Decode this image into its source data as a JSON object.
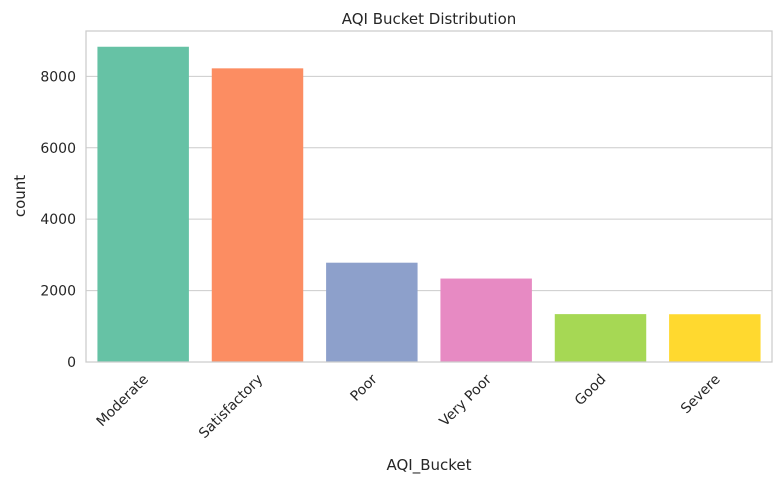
{
  "chart_data": {
    "type": "bar",
    "title": "AQI Bucket Distribution",
    "xlabel": "AQI_Bucket",
    "ylabel": "count",
    "categories": [
      "Moderate",
      "Satisfactory",
      "Poor",
      "Very Poor",
      "Good",
      "Severe"
    ],
    "values": [
      8829,
      8224,
      2781,
      2337,
      1341,
      1338
    ],
    "colors": [
      "#66c2a5",
      "#fc8d62",
      "#8da0cb",
      "#e78ac3",
      "#a6d854",
      "#ffd92f"
    ],
    "ylim": [
      0,
      9270
    ],
    "yticks": [
      0,
      2000,
      4000,
      6000,
      8000
    ],
    "grid": "y-major",
    "legend": "none"
  }
}
